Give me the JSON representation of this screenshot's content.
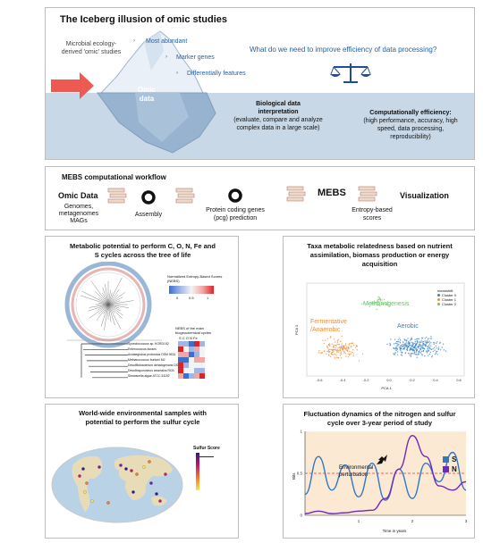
{
  "iceberg": {
    "title": "The Iceberg illusion of omic studies",
    "left_line1": "Microbial ecology-",
    "left_line2": "derived 'omic' studies",
    "bullet1": "Most abundant",
    "bullet2": "Marker genes",
    "bullet3": "Differentially features",
    "omic_line1": "Omic",
    "omic_line2": "data",
    "question": "What do we need to improve efficiency of data processing?",
    "bio_title1": "Biological data",
    "bio_title2": "interpretation",
    "bio_line1": "(evaluate, compare and analyze",
    "bio_line2": "complex data in a large scale)",
    "comp_title": "Computationally efficiency:",
    "comp_line1": "(high performance, accuracy, high",
    "comp_line2": "speed, data processing,",
    "comp_line3": "reproducibility)"
  },
  "workflow": {
    "title": "MEBS computational workflow",
    "omic_data": "Omic Data",
    "omic_sub1": "Genomes,",
    "omic_sub2": "metagenomes",
    "omic_sub3": "MAGs",
    "assembly": "Assembly",
    "pcg1": "Protein coding genes",
    "pcg2": "(pcg) prediction",
    "mebs": "MEBS",
    "entropy1": "Entropy-based",
    "entropy2": "scores",
    "visualization": "Visualization"
  },
  "tree_panel": {
    "title1": "Metabolic potential  to perform  C, O, N, Fe and",
    "title2": "S cycles across the tree of life",
    "legend_title1": "Normalized Entropy-Based Scores",
    "legend_title2": "(NEBS)",
    "legend_ticks": [
      "0",
      "0.5",
      "1"
    ],
    "heat_title1": "NEBS of the main",
    "heat_title2": "biogeochemical cycles",
    "heat_cols": "S  C  O  N Fe",
    "species": [
      "Synechococcus sp. KORDI-52",
      "Enterococcus durans",
      "Acidaeglobus profundus DSM 9631",
      "Methanococcus burtonii M2",
      "Desulfitobacterium dehalogenans DSM 9161",
      "Desulfosporosinus anomalus RCB",
      "Shewanella algae ATCC 51192"
    ],
    "colors": {
      "low": "#3b6fd0",
      "mid": "#f3f3f3",
      "high": "#d9252a"
    }
  },
  "scatter_panel": {
    "title1": "Taxa metabolic relatedness  based on  nutrient",
    "title2": "assimilation, biomass production or  energy",
    "title3": "acquisition",
    "label_methano": "Methanogenesis",
    "label_ferm1": "Fermentative",
    "label_ferm2": "/Anaerobic",
    "label_aerobic": "Aerobic",
    "legend_title": "meanshift",
    "legend_items": [
      "Cluster 0",
      "Cluster 1",
      "Cluster 2"
    ],
    "xlabel": "PCA 1",
    "ylabel": "PCA 2",
    "xticks": [
      "-0.6",
      "-0.4",
      "-0.2",
      "0.0",
      "0.2",
      "0.4",
      "0.6"
    ],
    "colors": {
      "aerobic": "#3b82c4",
      "ferm": "#f08c2e",
      "methano": "#6cc26c"
    }
  },
  "map_panel": {
    "title1": "World-wide environmental samples with",
    "title2": "potential to perform the sulfur cycle",
    "legend_title": "Sulfur Score"
  },
  "chart_panel": {
    "title1": "Fluctuation dynamics of the nitrogen and sulfur",
    "title2": "cycle over 3-year period of study",
    "annotation1": "Environmental",
    "annotation2": "perturbation"
  },
  "chart_data": {
    "type": "line",
    "title": "Fluctuation dynamics of the nitrogen and sulfur cycle over 3-year period of study",
    "xlabel": "Time in years",
    "ylabel": "Bits",
    "x": [
      0,
      0.25,
      0.5,
      0.75,
      1.0,
      1.25,
      1.5,
      1.75,
      2.0,
      2.25,
      2.5,
      2.75,
      3.0
    ],
    "xlim": [
      0,
      3
    ],
    "ylim": [
      0,
      1
    ],
    "x_ticks": [
      "1",
      "2",
      "3"
    ],
    "y_ticks": [
      "0",
      "0.5",
      "1"
    ],
    "threshold": 0.5,
    "series": [
      {
        "name": "S",
        "color": "#2e78c7",
        "values": [
          0.25,
          0.7,
          0.3,
          0.6,
          0.22,
          0.62,
          0.18,
          0.55,
          0.2,
          0.62,
          0.4,
          0.75,
          0.3
        ]
      },
      {
        "name": "N",
        "color": "#6c2bb8",
        "values": [
          0.02,
          0.05,
          0.02,
          0.03,
          0.05,
          0.06,
          0.2,
          0.55,
          0.95,
          0.7,
          0.35,
          0.3,
          0.4
        ]
      }
    ]
  }
}
